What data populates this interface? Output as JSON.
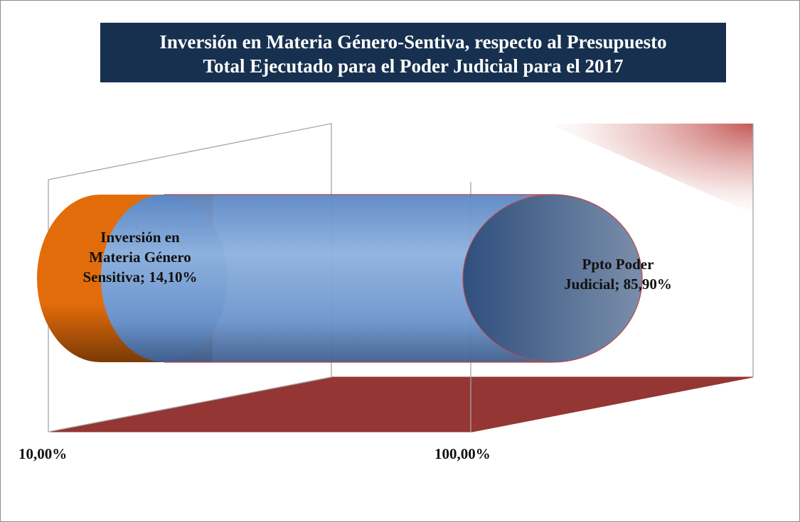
{
  "chart_data": {
    "type": "bar",
    "title": "Inversión en Materia Género-Sentiva,  respecto al Presupuesto Total  Ejecutado para el Poder Judicial para el 2017",
    "title_lines": [
      "Inversión en Materia Género-Sentiva,  respecto al Presupuesto",
      "Total  Ejecutado para el Poder Judicial para el 2017"
    ],
    "orientation": "horizontal",
    "style": "3d-cylinder",
    "axis": {
      "scale": "log",
      "range": [
        10,
        100
      ],
      "tick_labels": [
        "10,00%",
        "100,00%"
      ]
    },
    "series": [
      {
        "name": "Inversión en Materia Género Sensitiva",
        "value": 14.1,
        "label_lines": [
          "Inversión  en",
          "Materia Género",
          "Sensitiva; 14,10%"
        ],
        "color": "#e36c0a"
      },
      {
        "name": "Ppto Poder Judicial",
        "value": 85.9,
        "label_lines": [
          "Ppto Poder",
          "Judicial; 85,90%"
        ],
        "color": "#4f81bd"
      }
    ],
    "floor_color": "#943634",
    "title_background": "#17304f",
    "legend": "none",
    "grid": false
  }
}
